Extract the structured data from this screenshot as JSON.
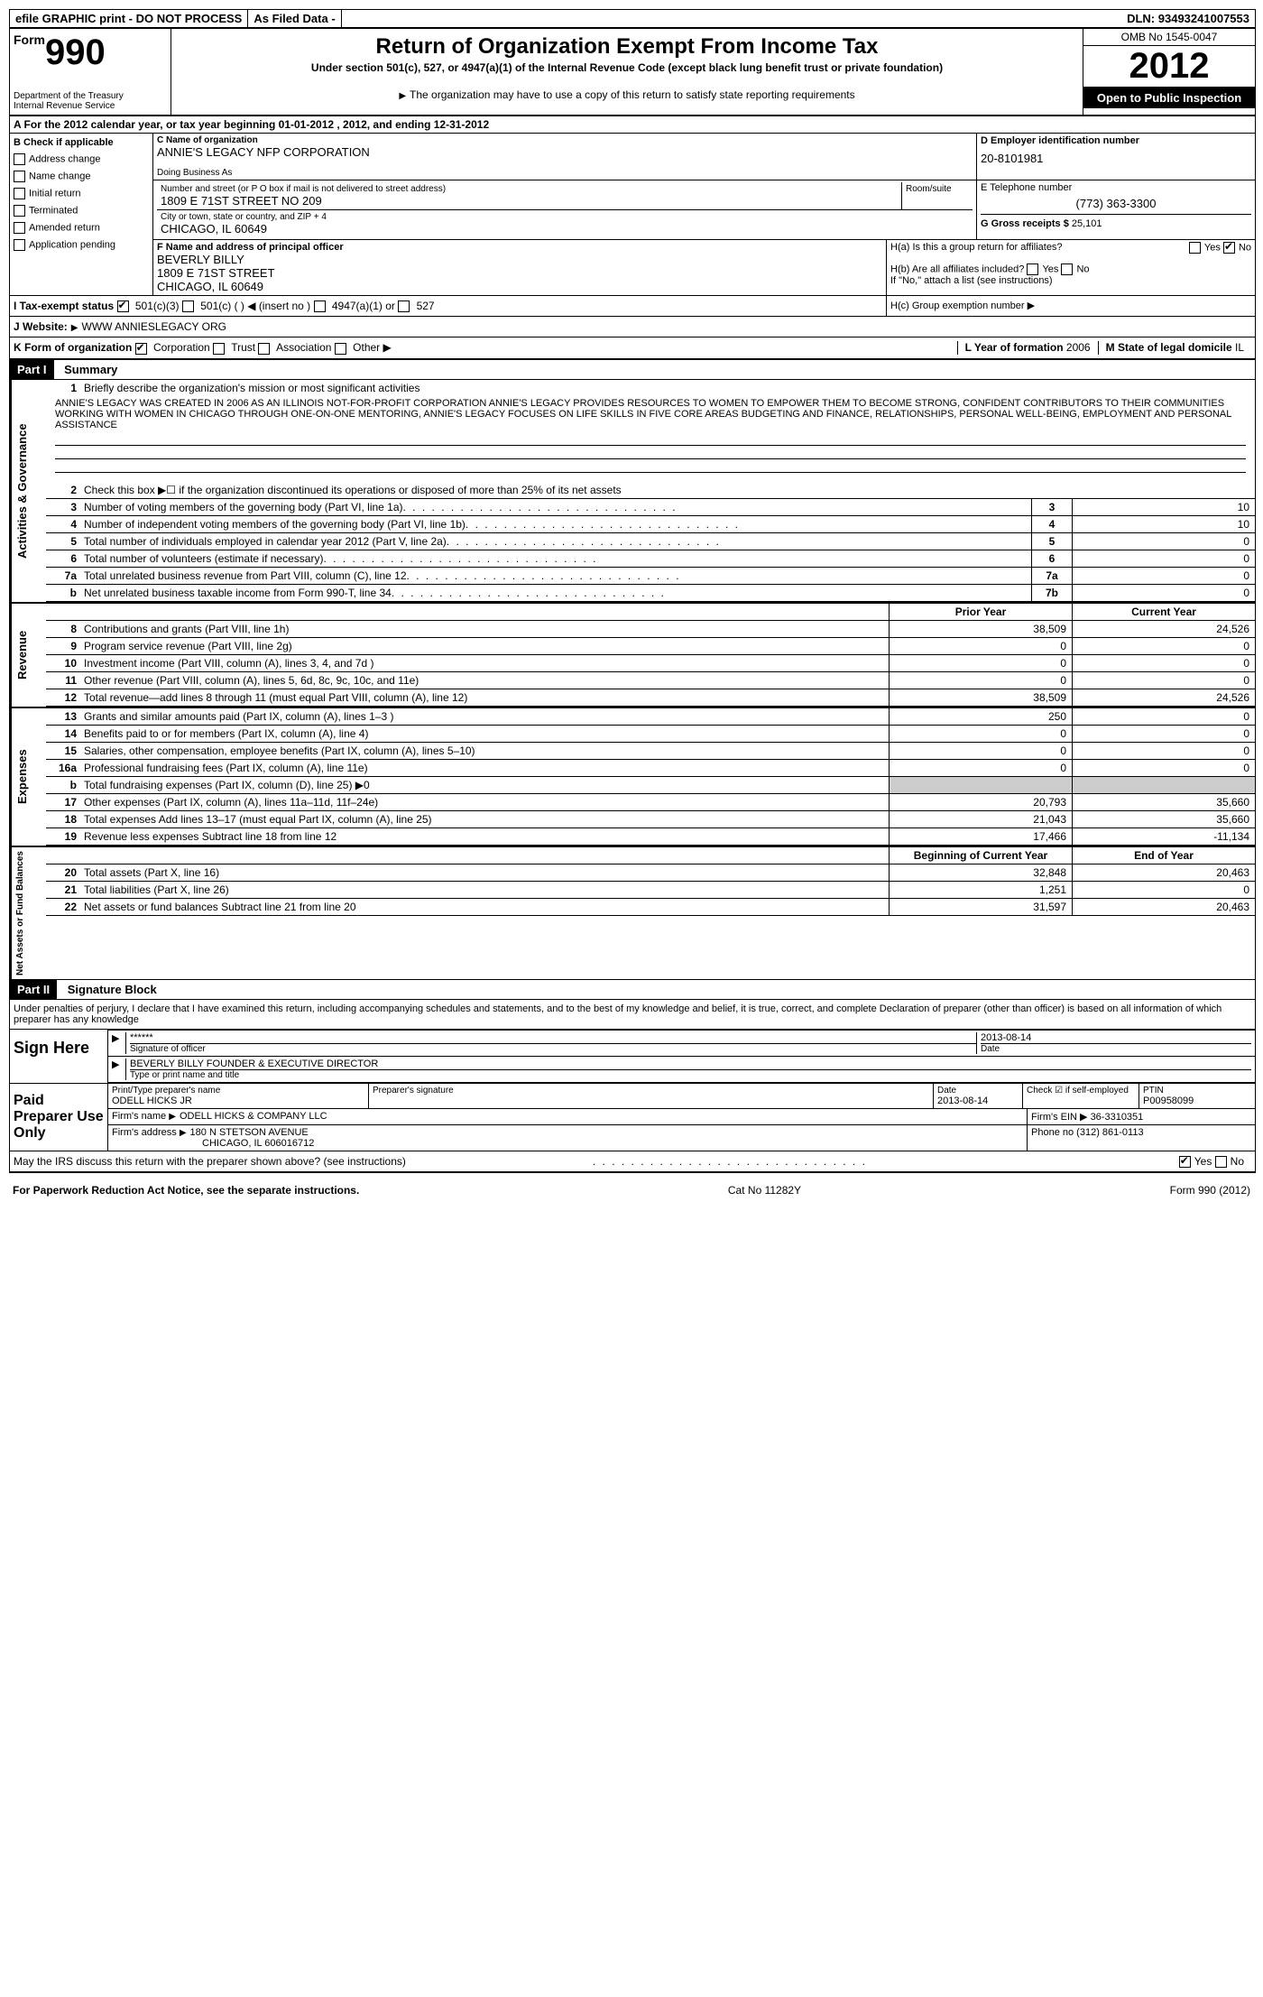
{
  "top_bar": {
    "efile": "efile GRAPHIC print - DO NOT PROCESS",
    "as_filed": "As Filed Data -",
    "dln_label": "DLN:",
    "dln": "93493241007553"
  },
  "header": {
    "form_prefix": "Form",
    "form_number": "990",
    "dept": "Department of the Treasury",
    "irs": "Internal Revenue Service",
    "title": "Return of Organization Exempt From Income Tax",
    "subtitle": "Under section 501(c), 527, or 4947(a)(1) of the Internal Revenue Code (except black lung benefit trust or private foundation)",
    "note": "The organization may have to use a copy of this return to satisfy state reporting requirements",
    "omb": "OMB No 1545-0047",
    "year": "2012",
    "inspection": "Open to Public Inspection"
  },
  "section_a": "A For the 2012 calendar year, or tax year beginning 01-01-2012    , 2012, and ending 12-31-2012",
  "section_b": {
    "title": "B Check if applicable",
    "items": [
      "Address change",
      "Name change",
      "Initial return",
      "Terminated",
      "Amended return",
      "Application pending"
    ]
  },
  "section_c": {
    "name_label": "C Name of organization",
    "name": "ANNIE'S LEGACY NFP CORPORATION",
    "dba_label": "Doing Business As",
    "addr_label": "Number and street (or P O  box if mail is not delivered to street address)",
    "room_label": "Room/suite",
    "address": "1809 E 71ST STREET NO 209",
    "city_label": "City or town, state or country, and ZIP + 4",
    "city": "CHICAGO, IL  60649"
  },
  "section_d": {
    "label": "D Employer identification number",
    "value": "20-8101981"
  },
  "section_e": {
    "label": "E Telephone number",
    "value": "(773) 363-3300"
  },
  "section_g": {
    "label": "G Gross receipts $",
    "value": "25,101"
  },
  "section_f": {
    "label": "F  Name and address of principal officer",
    "name": "BEVERLY BILLY",
    "addr1": "1809 E 71ST STREET",
    "addr2": "CHICAGO, IL  60649"
  },
  "section_h": {
    "ha": "H(a)  Is this a group return for affiliates?",
    "hb": "H(b)  Are all affiliates included?",
    "hb_note": "If \"No,\" attach a list  (see instructions)",
    "hc": "H(c)   Group exemption number"
  },
  "section_i": {
    "label": "I   Tax-exempt status",
    "opts": [
      "501(c)(3)",
      "501(c) (   )",
      "(insert no )",
      "4947(a)(1) or",
      "527"
    ]
  },
  "section_j": {
    "label": "J   Website:",
    "value": "WWW ANNIESLEGACY ORG"
  },
  "section_k": {
    "label": "K Form of organization",
    "opts": [
      "Corporation",
      "Trust",
      "Association",
      "Other"
    ]
  },
  "section_l": {
    "label": "L Year of formation",
    "value": "2006"
  },
  "section_m": {
    "label": "M State of legal domicile",
    "value": "IL"
  },
  "part1": {
    "header": "Part I",
    "title": "Summary",
    "line1_label": "Briefly describe the organization's mission or most significant activities",
    "mission": "ANNIE'S LEGACY WAS CREATED IN 2006 AS AN ILLINOIS NOT-FOR-PROFIT CORPORATION  ANNIE'S LEGACY PROVIDES RESOURCES TO WOMEN TO EMPOWER THEM TO BECOME STRONG, CONFIDENT CONTRIBUTORS TO THEIR COMMUNITIES  WORKING WITH WOMEN IN CHICAGO THROUGH ONE-ON-ONE MENTORING, ANNIE'S LEGACY FOCUSES ON LIFE SKILLS IN FIVE CORE AREAS  BUDGETING AND FINANCE, RELATIONSHIPS, PERSONAL WELL-BEING, EMPLOYMENT AND PERSONAL ASSISTANCE",
    "line2": "Check this box ▶☐ if the organization discontinued its operations or disposed of more than 25% of its net assets",
    "governance_label": "Activities & Governance",
    "revenue_label": "Revenue",
    "expenses_label": "Expenses",
    "netassets_label": "Net Assets or Fund Balances",
    "lines_gov": [
      {
        "num": "3",
        "desc": "Number of voting members of the governing body (Part VI, line 1a)",
        "box": "3",
        "val": "10"
      },
      {
        "num": "4",
        "desc": "Number of independent voting members of the governing body (Part VI, line 1b)",
        "box": "4",
        "val": "10"
      },
      {
        "num": "5",
        "desc": "Total number of individuals employed in calendar year 2012 (Part V, line 2a)",
        "box": "5",
        "val": "0"
      },
      {
        "num": "6",
        "desc": "Total number of volunteers (estimate if necessary)",
        "box": "6",
        "val": "0"
      },
      {
        "num": "7a",
        "desc": "Total unrelated business revenue from Part VIII, column (C), line 12",
        "box": "7a",
        "val": "0"
      },
      {
        "num": "b",
        "desc": "Net unrelated business taxable income from Form 990-T, line 34",
        "box": "7b",
        "val": "0"
      }
    ],
    "col_headers": {
      "prior": "Prior Year",
      "current": "Current Year"
    },
    "lines_rev": [
      {
        "num": "8",
        "desc": "Contributions and grants (Part VIII, line 1h)",
        "prior": "38,509",
        "current": "24,526"
      },
      {
        "num": "9",
        "desc": "Program service revenue (Part VIII, line 2g)",
        "prior": "0",
        "current": "0"
      },
      {
        "num": "10",
        "desc": "Investment income (Part VIII, column (A), lines 3, 4, and 7d )",
        "prior": "0",
        "current": "0"
      },
      {
        "num": "11",
        "desc": "Other revenue (Part VIII, column (A), lines 5, 6d, 8c, 9c, 10c, and 11e)",
        "prior": "0",
        "current": "0"
      },
      {
        "num": "12",
        "desc": "Total revenue—add lines 8 through 11 (must equal Part VIII, column (A), line 12)",
        "prior": "38,509",
        "current": "24,526"
      }
    ],
    "lines_exp": [
      {
        "num": "13",
        "desc": "Grants and similar amounts paid (Part IX, column (A), lines 1–3 )",
        "prior": "250",
        "current": "0"
      },
      {
        "num": "14",
        "desc": "Benefits paid to or for members (Part IX, column (A), line 4)",
        "prior": "0",
        "current": "0"
      },
      {
        "num": "15",
        "desc": "Salaries, other compensation, employee benefits (Part IX, column (A), lines 5–10)",
        "prior": "0",
        "current": "0"
      },
      {
        "num": "16a",
        "desc": "Professional fundraising fees (Part IX, column (A), line 11e)",
        "prior": "0",
        "current": "0"
      },
      {
        "num": "b",
        "desc": "Total fundraising expenses (Part IX, column (D), line 25) ▶0",
        "prior": "",
        "current": "",
        "gray": true
      },
      {
        "num": "17",
        "desc": "Other expenses (Part IX, column (A), lines 11a–11d, 11f–24e)",
        "prior": "20,793",
        "current": "35,660"
      },
      {
        "num": "18",
        "desc": "Total expenses  Add lines 13–17 (must equal Part IX, column (A), line 25)",
        "prior": "21,043",
        "current": "35,660"
      },
      {
        "num": "19",
        "desc": "Revenue less expenses  Subtract line 18 from line 12",
        "prior": "17,466",
        "current": "-11,134"
      }
    ],
    "col_headers2": {
      "begin": "Beginning of Current Year",
      "end": "End of Year"
    },
    "lines_net": [
      {
        "num": "20",
        "desc": "Total assets (Part X, line 16)",
        "prior": "32,848",
        "current": "20,463"
      },
      {
        "num": "21",
        "desc": "Total liabilities (Part X, line 26)",
        "prior": "1,251",
        "current": "0"
      },
      {
        "num": "22",
        "desc": "Net assets or fund balances  Subtract line 21 from line 20",
        "prior": "31,597",
        "current": "20,463"
      }
    ]
  },
  "part2": {
    "header": "Part II",
    "title": "Signature Block",
    "perjury": "Under penalties of perjury, I declare that I have examined this return, including accompanying schedules and statements, and to the best of my knowledge and belief, it is true, correct, and complete  Declaration of preparer (other than officer) is based on all information of which preparer has any knowledge",
    "sign_here": "Sign Here",
    "sig_stars": "******",
    "sig_date": "2013-08-14",
    "sig_officer_label": "Signature of officer",
    "date_label": "Date",
    "officer_name": "BEVERLY BILLY FOUNDER & EXECUTIVE DIRECTOR",
    "officer_type_label": "Type or print name and title",
    "paid_prep": "Paid Preparer Use Only",
    "prep_name_label": "Print/Type preparer's name",
    "prep_name": "ODELL HICKS JR",
    "prep_sig_label": "Preparer's signature",
    "prep_date_label": "Date",
    "prep_date": "2013-08-14",
    "self_emp": "Check ☑ if self-employed",
    "ptin_label": "PTIN",
    "ptin": "P00958099",
    "firm_name_label": "Firm's name",
    "firm_name": "ODELL HICKS & COMPANY LLC",
    "firm_ein_label": "Firm's EIN",
    "firm_ein": "36-3310351",
    "firm_addr_label": "Firm's address",
    "firm_addr": "180 N STETSON AVENUE",
    "firm_city": "CHICAGO, IL  606016712",
    "phone_label": "Phone no",
    "phone": "(312) 861-0113",
    "discuss": "May the IRS discuss this return with the preparer shown above? (see instructions)"
  },
  "footer": {
    "left": "For Paperwork Reduction Act Notice, see the separate instructions.",
    "center": "Cat No 11282Y",
    "right": "Form 990 (2012)"
  },
  "yes": "Yes",
  "no": "No"
}
